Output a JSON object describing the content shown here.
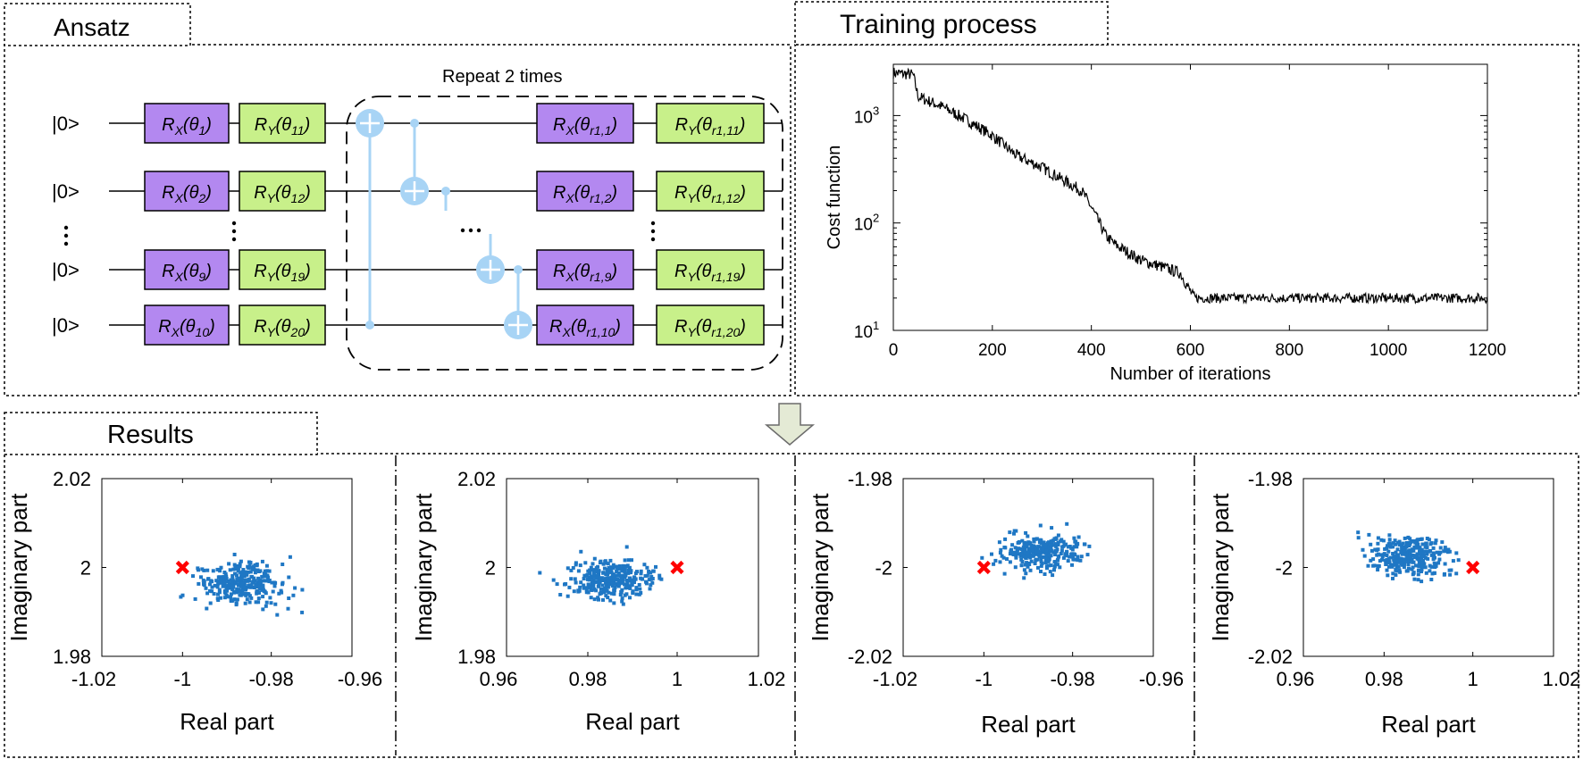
{
  "sections": {
    "ansatz": "Ansatz",
    "training": "Training process",
    "results": "Results"
  },
  "circuit": {
    "repeat_label": "Repeat 2 times",
    "qubits": [
      {
        "state": "|0>",
        "rx": "R",
        "rx_sub": "X",
        "rx_theta": "1",
        "ry": "R",
        "ry_sub": "Y",
        "ry_theta": "11",
        "rx2_theta": "r1,1",
        "ry2_theta": "r1,11"
      },
      {
        "state": "|0>",
        "rx": "R",
        "rx_sub": "X",
        "rx_theta": "2",
        "ry": "R",
        "ry_sub": "Y",
        "ry_theta": "12",
        "rx2_theta": "r1,2",
        "ry2_theta": "r1,12"
      },
      {
        "state": "|0>",
        "rx": "R",
        "rx_sub": "X",
        "rx_theta": "9",
        "ry": "R",
        "ry_sub": "Y",
        "ry_theta": "19",
        "rx2_theta": "r1,9",
        "ry2_theta": "r1,19"
      },
      {
        "state": "|0>",
        "rx": "R",
        "rx_sub": "X",
        "rx_theta": "10",
        "ry": "R",
        "ry_sub": "Y",
        "ry_theta": "20",
        "rx2_theta": "r1,10",
        "ry2_theta": "r1,20"
      }
    ],
    "colors": {
      "rx_fill": "#b388f0",
      "ry_fill": "#c8f08a",
      "cnot": "#a8d4f5",
      "line": "#000000"
    }
  },
  "chart_data": [
    {
      "type": "line",
      "title": "",
      "xlabel": "Number of iterations",
      "ylabel": "Cost function",
      "xlim": [
        0,
        1200
      ],
      "ylim": [
        10,
        3000
      ],
      "yscale": "log",
      "xticks": [
        "0",
        "200",
        "400",
        "600",
        "800",
        "1000",
        "1200"
      ],
      "yticks": [
        {
          "base": "10",
          "exp": "1"
        },
        {
          "base": "10",
          "exp": "2"
        },
        {
          "base": "10",
          "exp": "3"
        }
      ],
      "series": [
        {
          "name": "cost",
          "x": [
            0,
            40,
            50,
            100,
            150,
            200,
            250,
            300,
            350,
            380,
            400,
            430,
            450,
            500,
            550,
            580,
            600,
            610,
            700,
            800,
            900,
            1000,
            1100,
            1200
          ],
          "y": [
            2500,
            2400,
            1500,
            1200,
            900,
            650,
            420,
            330,
            240,
            200,
            140,
            75,
            62,
            45,
            38,
            34,
            23,
            20,
            20,
            20,
            20,
            20,
            20,
            20
          ]
        }
      ]
    },
    {
      "type": "scatter",
      "xlabel": "Real part",
      "ylabel": "Imaginary part",
      "xlim": [
        -1.02,
        -0.96
      ],
      "ylim": [
        1.98,
        2.02
      ],
      "xticks": [
        "-1.02",
        "-1",
        "-0.98",
        "-0.96"
      ],
      "yticks": [
        "1.98",
        "2",
        "2.02"
      ],
      "cloud": {
        "cx": -0.987,
        "cy": 1.9963,
        "sx": 0.0045,
        "sy": 0.0025,
        "n": 300,
        "seed": 1
      },
      "target": [
        -1.0,
        2.0
      ]
    },
    {
      "type": "scatter",
      "xlabel": "Real part",
      "ylabel": "Imaginary part",
      "xlim": [
        0.96,
        1.02
      ],
      "ylim": [
        1.98,
        2.02
      ],
      "xticks": [
        "0.96",
        "0.98",
        "1",
        "1.02"
      ],
      "yticks": [
        "1.98",
        "2",
        "2.02"
      ],
      "cloud": {
        "cx": 0.9855,
        "cy": 1.9975,
        "sx": 0.0045,
        "sy": 0.0022,
        "n": 300,
        "seed": 2
      },
      "target": [
        1.0,
        2.0
      ]
    },
    {
      "type": "scatter",
      "xlabel": "Real part",
      "ylabel": "Imaginary part",
      "xlim": [
        -1.02,
        -0.96
      ],
      "ylim": [
        -2.02,
        -1.98
      ],
      "xticks": [
        "-1.02",
        "-1",
        "-0.98",
        "-0.96"
      ],
      "yticks": [
        "-2.02",
        "-2",
        "-1.98"
      ],
      "cloud": {
        "cx": -0.987,
        "cy": -1.9965,
        "sx": 0.0045,
        "sy": 0.0022,
        "n": 300,
        "seed": 3
      },
      "target": [
        -1.0,
        -2.0
      ]
    },
    {
      "type": "scatter",
      "xlabel": "Real part",
      "ylabel": "Imaginary part",
      "xlim": [
        0.96,
        1.02
      ],
      "ylim": [
        -2.02,
        -1.98
      ],
      "xticks": [
        "0.96",
        "0.98",
        "1",
        "1.02"
      ],
      "yticks": [
        "-2.02",
        "-2",
        "-1.98"
      ],
      "cloud": {
        "cx": 0.9855,
        "cy": -1.9975,
        "sx": 0.0045,
        "sy": 0.0022,
        "n": 300,
        "seed": 4
      },
      "target": [
        1.0,
        -2.0
      ]
    }
  ],
  "colors": {
    "scatter": "#1f77c4",
    "target": "#ff0000",
    "arrow_fill": "#e4ead5",
    "arrow_stroke": "#6b6b6b"
  }
}
